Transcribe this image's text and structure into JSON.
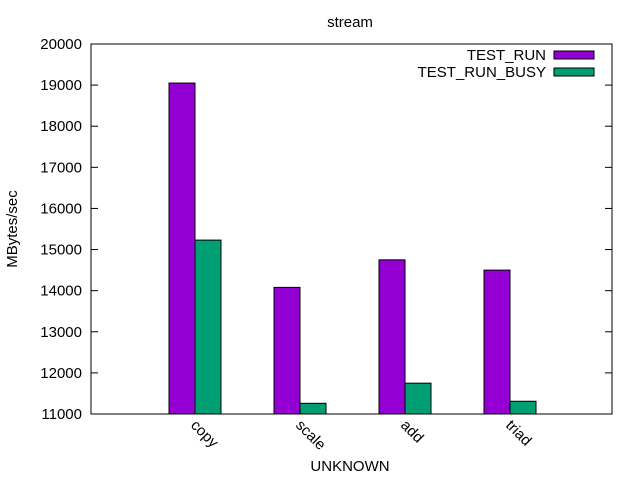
{
  "chart_data": {
    "type": "bar",
    "title": "stream",
    "xlabel": "UNKNOWN",
    "ylabel": "MBytes/sec",
    "ylim": [
      11000,
      20000
    ],
    "yticks": [
      11000,
      12000,
      13000,
      14000,
      15000,
      16000,
      17000,
      18000,
      19000,
      20000
    ],
    "categories": [
      "copy",
      "scale",
      "add",
      "triad"
    ],
    "series": [
      {
        "name": "TEST_RUN",
        "color": "#9400d3",
        "values": [
          19050,
          14080,
          14750,
          14500
        ]
      },
      {
        "name": "TEST_RUN_BUSY",
        "color": "#009e73",
        "values": [
          15230,
          11260,
          11750,
          11310
        ]
      }
    ],
    "legend_position": "top-right",
    "grid": false
  }
}
